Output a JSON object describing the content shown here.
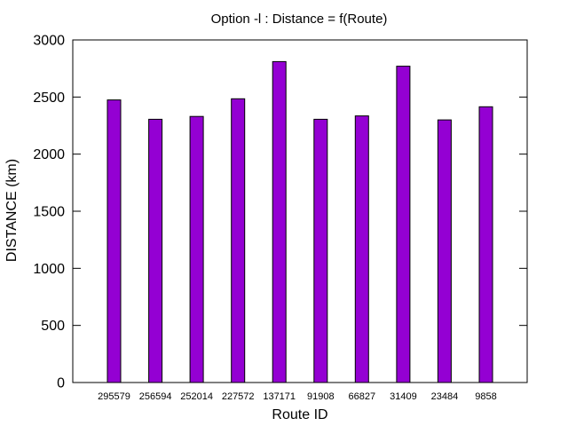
{
  "chart_data": {
    "type": "bar",
    "title": "Option -l : Distance = f(Route)",
    "xlabel": "Route ID",
    "ylabel": "DISTANCE (km)",
    "categories": [
      "295579",
      "256594",
      "252014",
      "227572",
      "137171",
      "91908",
      "66827",
      "31409",
      "23484",
      "9858"
    ],
    "values": [
      2475,
      2305,
      2330,
      2485,
      2810,
      2305,
      2335,
      2770,
      2300,
      2415
    ],
    "ylim": [
      0,
      3000
    ],
    "yticks": [
      0,
      500,
      1000,
      1500,
      2000,
      2500,
      3000
    ],
    "grid": false,
    "legend": "none",
    "bar_color": "#9400d3",
    "bar_edge_color": "#000000"
  }
}
